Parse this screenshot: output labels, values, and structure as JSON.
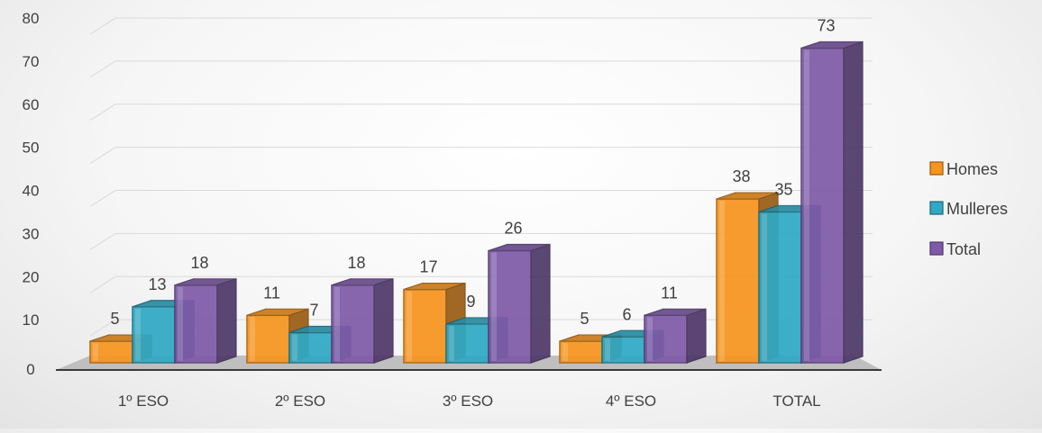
{
  "chart_data": {
    "type": "bar",
    "categories": [
      "1º ESO",
      "2º ESO",
      "3º ESO",
      "4º ESO",
      "TOTAL"
    ],
    "series": [
      {
        "name": "Homes",
        "values": [
          5,
          11,
          17,
          5,
          38
        ],
        "color": "#F7941D"
      },
      {
        "name": "Mulleres",
        "values": [
          13,
          7,
          9,
          6,
          35
        ],
        "color": "#2FA9C5"
      },
      {
        "name": "Total",
        "values": [
          18,
          18,
          26,
          11,
          73
        ],
        "color": "#7E5AA8"
      }
    ],
    "yticks": [
      0,
      10,
      20,
      30,
      40,
      50,
      60,
      70,
      80
    ],
    "ylim": [
      0,
      80
    ],
    "grid": true,
    "legend": "right",
    "data_labels": true
  }
}
